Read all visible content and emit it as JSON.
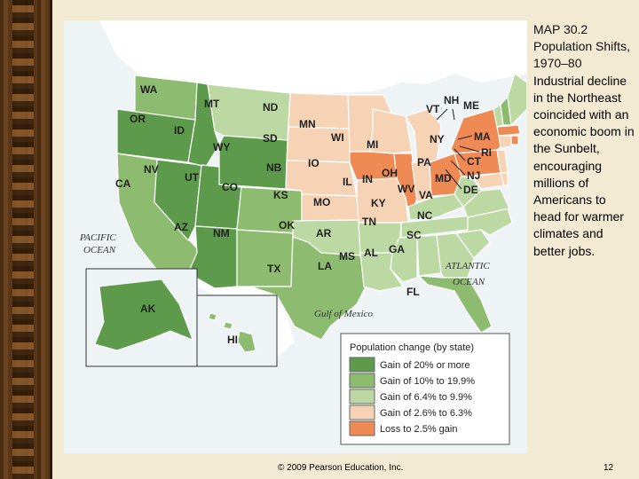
{
  "caption": {
    "title": "MAP 30.2 Population Shifts, 1970–80",
    "body": "Industrial decline in the Northeast coincided with an economic boom in the Sunbelt, encouraging millions of Americans to head for warmer climates and better jobs."
  },
  "footer": {
    "copyright": "© 2009 Pearson Education, Inc.",
    "page_number": "12"
  },
  "map": {
    "water_labels": {
      "pacific": "PACIFIC",
      "pacific2": "OCEAN",
      "atlantic": "ATLANTIC",
      "atlantic2": "OCEAN",
      "gulf": "Gulf of Mexico"
    },
    "states": {
      "WA": "WA",
      "OR": "OR",
      "CA": "CA",
      "NV": "NV",
      "ID": "ID",
      "MT": "MT",
      "WY": "WY",
      "UT": "UT",
      "AZ": "AZ",
      "CO": "CO",
      "NM": "NM",
      "ND": "ND",
      "SD": "SD",
      "NB": "NB",
      "KS": "KS",
      "OK": "OK",
      "TX": "TX",
      "MN": "MN",
      "IO": "IO",
      "MO": "MO",
      "AR": "AR",
      "LA": "LA",
      "WI": "WI",
      "IL": "IL",
      "MI": "MI",
      "IN": "IN",
      "OH": "OH",
      "KY": "KY",
      "TN": "TN",
      "MS": "MS",
      "AL": "AL",
      "GA": "GA",
      "FL": "FL",
      "SC": "SC",
      "NC": "NC",
      "VA": "VA",
      "WV": "WV",
      "PA": "PA",
      "NY": "NY",
      "VT": "VT",
      "NH": "NH",
      "ME": "ME",
      "MA": "MA",
      "RI": "RI",
      "CT": "CT",
      "NJ": "NJ",
      "MD": "MD",
      "DE": "DE",
      "AK": "AK",
      "HI": "HI"
    },
    "state_category": {
      "WA": "c2",
      "OR": "c1",
      "CA": "c2",
      "NV": "c1",
      "ID": "c1",
      "MT": "c3",
      "WY": "c1",
      "UT": "c1",
      "AZ": "c1",
      "CO": "c2",
      "NM": "c2",
      "ND": "c4",
      "SD": "c4",
      "NB": "c4",
      "KS": "c4",
      "OK": "c3",
      "TX": "c2",
      "MN": "c4",
      "IO": "c5",
      "MO": "c4",
      "AR": "c3",
      "LA": "c3",
      "WI": "c4",
      "IL": "c5",
      "MI": "c4",
      "IN": "c4",
      "OH": "c5",
      "KY": "c3",
      "TN": "c3",
      "MS": "c3",
      "AL": "c3",
      "GA": "c3",
      "FL": "c2",
      "SC": "c3",
      "NC": "c3",
      "VA": "c3",
      "WV": "c3",
      "PA": "c5",
      "NY": "c5",
      "VT": "c3",
      "NH": "c2",
      "ME": "c3",
      "MA": "c5",
      "RI": "c5",
      "CT": "c4",
      "NJ": "c4",
      "MD": "c4",
      "DE": "c4",
      "AK": "c1",
      "HI": "c2"
    },
    "legend": {
      "title": "Population change (by state)",
      "items": [
        {
          "key": "c1",
          "label": "Gain of 20% or more",
          "color": "#5e9a4c"
        },
        {
          "key": "c2",
          "label": "Gain of 10% to 19.9%",
          "color": "#8dbb6f"
        },
        {
          "key": "c3",
          "label": "Gain of 6.4% to 9.9%",
          "color": "#bcd9a4"
        },
        {
          "key": "c4",
          "label": "Gain of 2.6% to 6.3%",
          "color": "#f7d3b6"
        },
        {
          "key": "c5",
          "label": "Loss to 2.5% gain",
          "color": "#ef8a55"
        }
      ]
    }
  }
}
